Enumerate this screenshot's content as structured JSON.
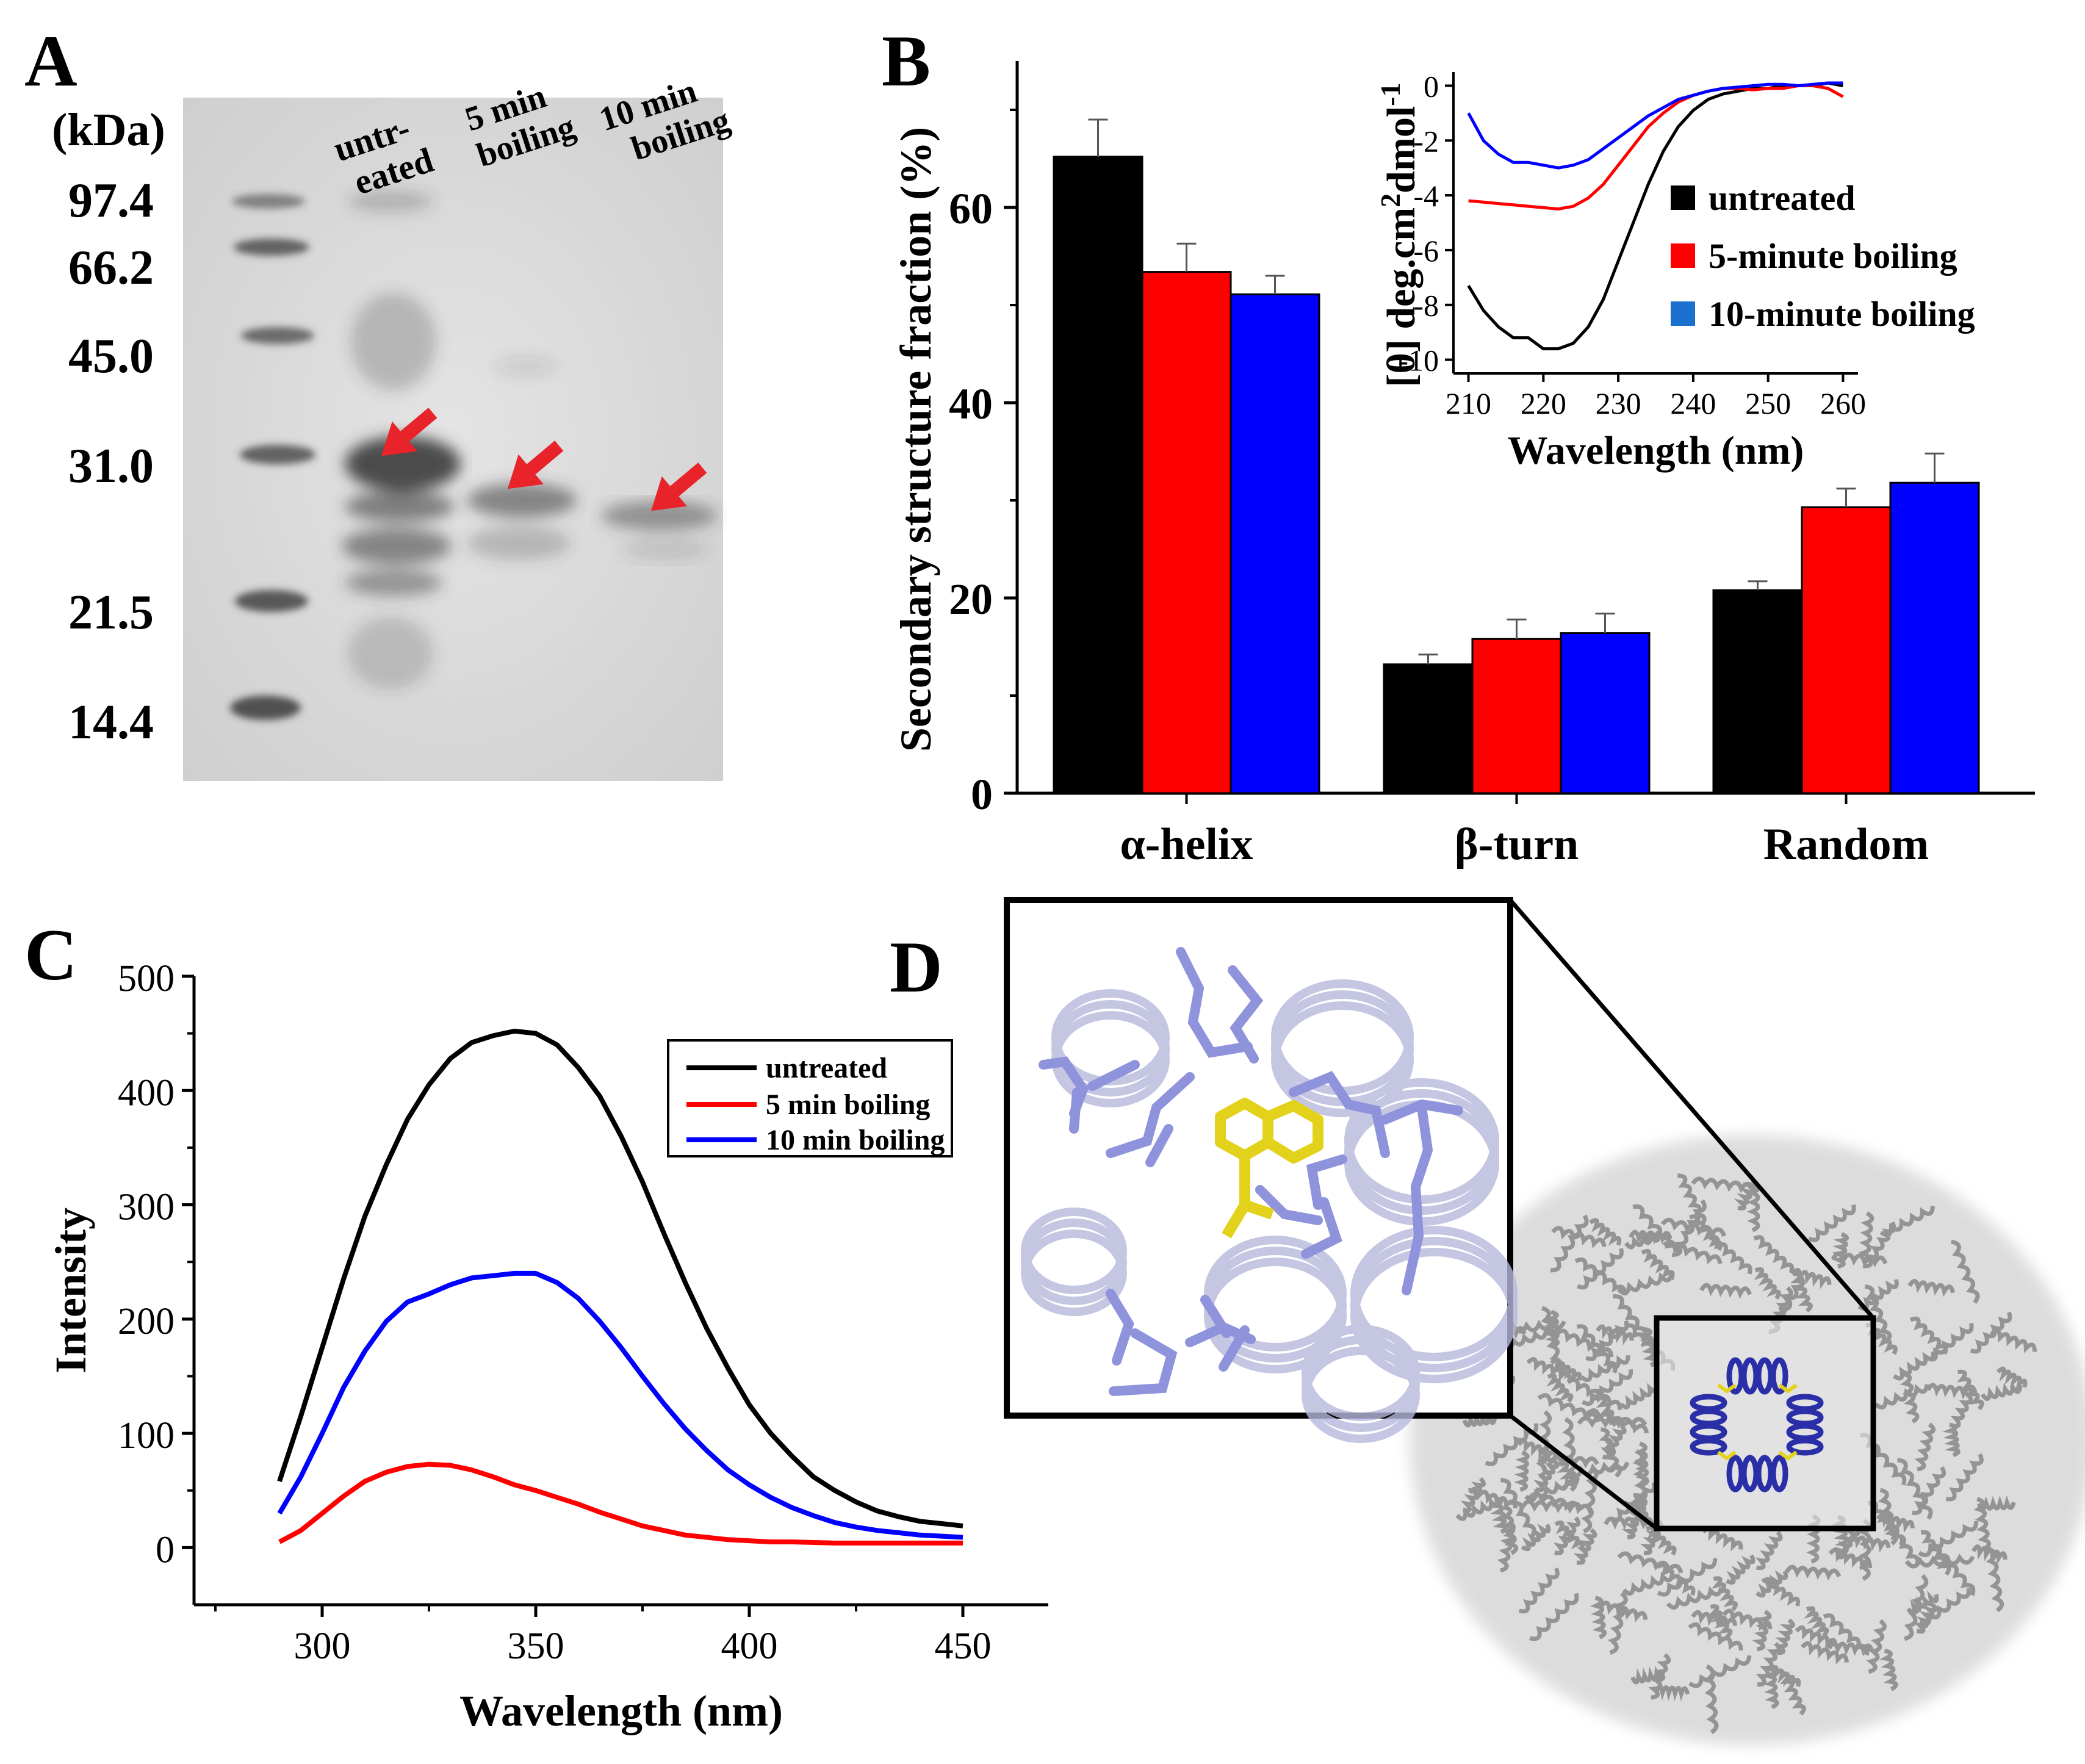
{
  "panels": {
    "A": {
      "label": "A",
      "unit_label": "(kDa)",
      "markers": [
        "97.4",
        "66.2",
        "45.0",
        "31.0",
        "21.5",
        "14.4"
      ],
      "lanes": [
        {
          "line1": "untr-",
          "line2": "eated"
        },
        {
          "line1": "5 min",
          "line2": "boiling"
        },
        {
          "line1": "10 min",
          "line2": "boiling"
        }
      ],
      "arrow_color": "#e8232a"
    },
    "B": {
      "label": "B"
    },
    "C": {
      "label": "C"
    },
    "D": {
      "label": "D"
    }
  },
  "chart_data": [
    {
      "id": "B-bars",
      "type": "bar",
      "categories": [
        "α-helix",
        "β-turn",
        "Random"
      ],
      "series": [
        {
          "name": "untreated",
          "color": "#000000",
          "values": [
            65.2,
            13.2,
            20.8
          ],
          "errors": [
            3.8,
            1.0,
            0.9
          ]
        },
        {
          "name": "5-minute boiling",
          "color": "#ff0000",
          "values": [
            53.4,
            15.8,
            29.3
          ],
          "errors": [
            2.9,
            2.0,
            1.9
          ]
        },
        {
          "name": "10-minute boiling",
          "color": "#0000ff",
          "values": [
            51.1,
            16.4,
            31.8
          ],
          "errors": [
            1.9,
            2.0,
            3.0
          ]
        }
      ],
      "xlabel": "",
      "ylabel": "Secondary structure fraction (%)",
      "ylim": [
        0,
        75
      ],
      "yticks": [
        0,
        20,
        40,
        60
      ]
    },
    {
      "id": "B-inset",
      "type": "line",
      "xlabel": "Wavelength (nm)",
      "ylabel_main": "[θ] deg.cm",
      "ylabel_sup1": "2",
      "ylabel_mid": "dmol",
      "ylabel_sup2": "-1",
      "xlim": [
        208,
        262
      ],
      "ylim": [
        -10.5,
        0.5
      ],
      "xticks": [
        210,
        220,
        230,
        240,
        250,
        260
      ],
      "yticks": [
        0,
        -2,
        -4,
        -6,
        -8,
        -10
      ],
      "legend": [
        "untreated",
        "5-minute boiling",
        "10-minute boiling"
      ],
      "legend_colors": [
        "#000000",
        "#ff0000",
        "#1a6fcf"
      ],
      "series": [
        {
          "name": "untreated",
          "color": "#000000",
          "x": [
            210,
            212,
            214,
            216,
            218,
            220,
            222,
            224,
            226,
            228,
            230,
            232,
            234,
            236,
            238,
            240,
            242,
            244,
            246,
            248,
            250,
            252,
            254,
            256,
            258,
            260
          ],
          "y": [
            -7.3,
            -8.2,
            -8.8,
            -9.2,
            -9.2,
            -9.6,
            -9.6,
            -9.4,
            -8.8,
            -7.8,
            -6.4,
            -5.0,
            -3.6,
            -2.4,
            -1.5,
            -0.9,
            -0.5,
            -0.3,
            -0.2,
            -0.1,
            -0.1,
            0.0,
            0.0,
            0.0,
            0.1,
            0.0
          ]
        },
        {
          "name": "5-minute boiling",
          "color": "#ff0000",
          "x": [
            210,
            212,
            214,
            216,
            218,
            220,
            222,
            224,
            226,
            228,
            230,
            232,
            234,
            236,
            238,
            240,
            242,
            244,
            246,
            248,
            250,
            252,
            254,
            256,
            258,
            260
          ],
          "y": [
            -4.2,
            -4.25,
            -4.3,
            -4.35,
            -4.4,
            -4.45,
            -4.5,
            -4.4,
            -4.1,
            -3.6,
            -2.9,
            -2.2,
            -1.5,
            -1.0,
            -0.6,
            -0.35,
            -0.2,
            -0.1,
            -0.1,
            -0.15,
            -0.1,
            -0.1,
            0.0,
            0.0,
            -0.1,
            -0.4
          ]
        },
        {
          "name": "10-minute boiling",
          "color": "#0000ff",
          "x": [
            210,
            212,
            214,
            216,
            218,
            220,
            222,
            224,
            226,
            228,
            230,
            232,
            234,
            236,
            238,
            240,
            242,
            244,
            246,
            248,
            250,
            252,
            254,
            256,
            258,
            260
          ],
          "y": [
            -1.0,
            -2.0,
            -2.5,
            -2.8,
            -2.8,
            -2.9,
            -3.0,
            -2.9,
            -2.7,
            -2.3,
            -1.9,
            -1.5,
            -1.1,
            -0.8,
            -0.5,
            -0.35,
            -0.2,
            -0.1,
            -0.05,
            0.0,
            0.05,
            0.05,
            0.0,
            0.05,
            0.1,
            0.1
          ]
        }
      ]
    },
    {
      "id": "C-line",
      "type": "line",
      "xlabel": "Wavelength (nm)",
      "ylabel": "Intensity",
      "xlim": [
        270,
        470
      ],
      "ylim": [
        -50,
        500
      ],
      "xticks": [
        300,
        350,
        400,
        450
      ],
      "yticks": [
        0,
        100,
        200,
        300,
        400,
        500
      ],
      "legend": [
        "untreated",
        "5 min boiling",
        "10 min boiling"
      ],
      "series": [
        {
          "name": "untreated",
          "color": "#000000",
          "x": [
            290,
            295,
            300,
            305,
            310,
            315,
            320,
            325,
            330,
            335,
            340,
            345,
            350,
            355,
            360,
            365,
            370,
            375,
            380,
            385,
            390,
            395,
            400,
            405,
            410,
            415,
            420,
            425,
            430,
            435,
            440,
            445,
            450
          ],
          "y": [
            58,
            115,
            175,
            235,
            290,
            335,
            375,
            405,
            428,
            442,
            448,
            452,
            450,
            440,
            420,
            395,
            360,
            320,
            275,
            232,
            192,
            157,
            125,
            100,
            80,
            62,
            50,
            40,
            32,
            27,
            23,
            21,
            19
          ]
        },
        {
          "name": "5 min boiling",
          "color": "#ff0000",
          "x": [
            290,
            295,
            300,
            305,
            310,
            315,
            320,
            325,
            330,
            335,
            340,
            345,
            350,
            355,
            360,
            365,
            370,
            375,
            380,
            385,
            390,
            395,
            400,
            405,
            410,
            420,
            430,
            440,
            450
          ],
          "y": [
            5,
            15,
            30,
            45,
            58,
            66,
            71,
            73,
            72,
            68,
            62,
            55,
            50,
            44,
            38,
            31,
            25,
            19,
            15,
            11,
            9,
            7,
            6,
            5,
            5,
            4,
            4,
            4,
            4
          ]
        },
        {
          "name": "10 min boiling",
          "color": "#0000ff",
          "x": [
            290,
            295,
            300,
            305,
            310,
            315,
            320,
            325,
            330,
            335,
            340,
            345,
            350,
            355,
            360,
            365,
            370,
            375,
            380,
            385,
            390,
            395,
            400,
            405,
            410,
            415,
            420,
            425,
            430,
            435,
            440,
            445,
            450
          ],
          "y": [
            30,
            62,
            100,
            140,
            172,
            198,
            215,
            222,
            230,
            236,
            238,
            240,
            240,
            232,
            218,
            198,
            175,
            150,
            126,
            104,
            85,
            68,
            55,
            44,
            35,
            28,
            22,
            18,
            15,
            13,
            11,
            10,
            9
          ]
        }
      ]
    }
  ]
}
